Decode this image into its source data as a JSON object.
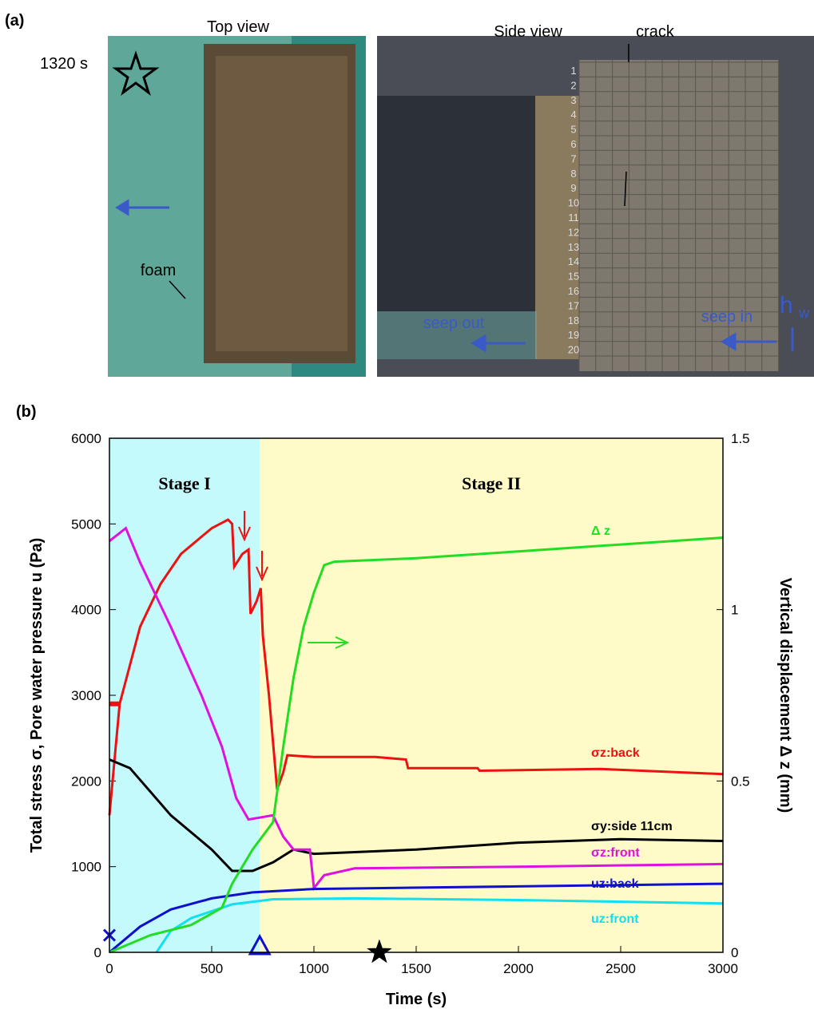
{
  "panel_a": {
    "label": "(a)",
    "top_view": "Top view",
    "side_view": "Side view",
    "time": "1320 s",
    "crack": "crack",
    "foam": "foam",
    "seep_out": "seep out",
    "seep_in": "seep in",
    "hw": "h",
    "hw_sub": "w",
    "ruler": [
      "1",
      "2",
      "3",
      "4",
      "5",
      "6",
      "7",
      "8",
      "9",
      "10",
      "11",
      "12",
      "13",
      "14",
      "15",
      "16",
      "17",
      "18",
      "19",
      "20"
    ]
  },
  "chart_data": {
    "type": "line",
    "panel_label": "(b)",
    "x_label": "Time (s)",
    "y_label": "Total stress σ, Pore water pressure u (Pa)",
    "y2_label": "Vertical displacement Δ z (mm)",
    "stages": [
      "Stage I",
      "Stage II"
    ],
    "stage_boundary": 735,
    "stage_colors": [
      "#c4fafc",
      "#fefbc8"
    ],
    "xlim": [
      0,
      3000
    ],
    "xticks": [
      0,
      500,
      1000,
      1500,
      2000,
      2500,
      3000
    ],
    "ylim": [
      0,
      6000
    ],
    "yticks": [
      0,
      1000,
      2000,
      3000,
      4000,
      5000,
      6000
    ],
    "y2lim": [
      0,
      1.5
    ],
    "y2ticks": [
      0,
      0.5,
      1,
      1.5
    ],
    "series": [
      {
        "name": "σz:back",
        "color": "#ee1111",
        "x": [
          0,
          50,
          150,
          250,
          350,
          400,
          500,
          580,
          600,
          610,
          650,
          680,
          690,
          720,
          740,
          750,
          780,
          820,
          850,
          870,
          1000,
          1300,
          1450,
          1460,
          1800,
          1810,
          2400,
          3000
        ],
        "values": [
          1600,
          2900,
          3800,
          4300,
          4650,
          4750,
          4950,
          5050,
          5000,
          4500,
          4650,
          4700,
          3950,
          4100,
          4250,
          3700,
          3000,
          1900,
          2100,
          2300,
          2280,
          2280,
          2250,
          2150,
          2150,
          2120,
          2140,
          2080
        ]
      },
      {
        "name": "σy:side 11cm",
        "color": "#000000",
        "x": [
          0,
          100,
          300,
          500,
          600,
          700,
          800,
          900,
          1000,
          1500,
          2000,
          2500,
          3000
        ],
        "values": [
          2250,
          2150,
          1600,
          1200,
          950,
          950,
          1050,
          1200,
          1150,
          1200,
          1280,
          1320,
          1300
        ]
      },
      {
        "name": "σz:front",
        "color": "#e010e0",
        "x": [
          0,
          80,
          150,
          300,
          450,
          550,
          620,
          680,
          800,
          850,
          900,
          980,
          1000,
          1050,
          1200,
          2000,
          3000
        ],
        "values": [
          4800,
          4950,
          4550,
          3800,
          3000,
          2400,
          1800,
          1550,
          1600,
          1350,
          1200,
          1200,
          750,
          900,
          980,
          1000,
          1030
        ]
      },
      {
        "name": "uz:back",
        "color": "#1010cc",
        "x": [
          0,
          50,
          150,
          300,
          500,
          700,
          1000,
          2000,
          3000
        ],
        "values": [
          0,
          100,
          300,
          500,
          630,
          700,
          740,
          770,
          800
        ]
      },
      {
        "name": "uz:front",
        "color": "#10e0f0",
        "x": [
          230,
          300,
          400,
          600,
          800,
          1200,
          2000,
          3000
        ],
        "values": [
          0,
          250,
          400,
          560,
          620,
          630,
          610,
          570
        ]
      },
      {
        "name": "Δ z",
        "color": "#22dd22",
        "axis": "y2",
        "x": [
          0,
          200,
          400,
          550,
          600,
          700,
          800,
          850,
          900,
          950,
          1000,
          1050,
          1100,
          1500,
          2000,
          2500,
          3000
        ],
        "values": [
          0,
          0.05,
          0.08,
          0.13,
          0.2,
          0.3,
          0.38,
          0.6,
          0.8,
          0.95,
          1.05,
          1.13,
          1.14,
          1.15,
          1.17,
          1.19,
          1.21
        ]
      }
    ],
    "markers": [
      {
        "shape": "dash",
        "x": 0,
        "y": 2900,
        "color": "#ee1111"
      },
      {
        "shape": "cross",
        "x": 0,
        "y": 200,
        "color": "#1010cc"
      },
      {
        "shape": "triangle",
        "x": 735,
        "y": 0,
        "color": "#1010cc"
      },
      {
        "shape": "star",
        "x": 1320,
        "y": 0,
        "color": "#000000"
      }
    ]
  }
}
